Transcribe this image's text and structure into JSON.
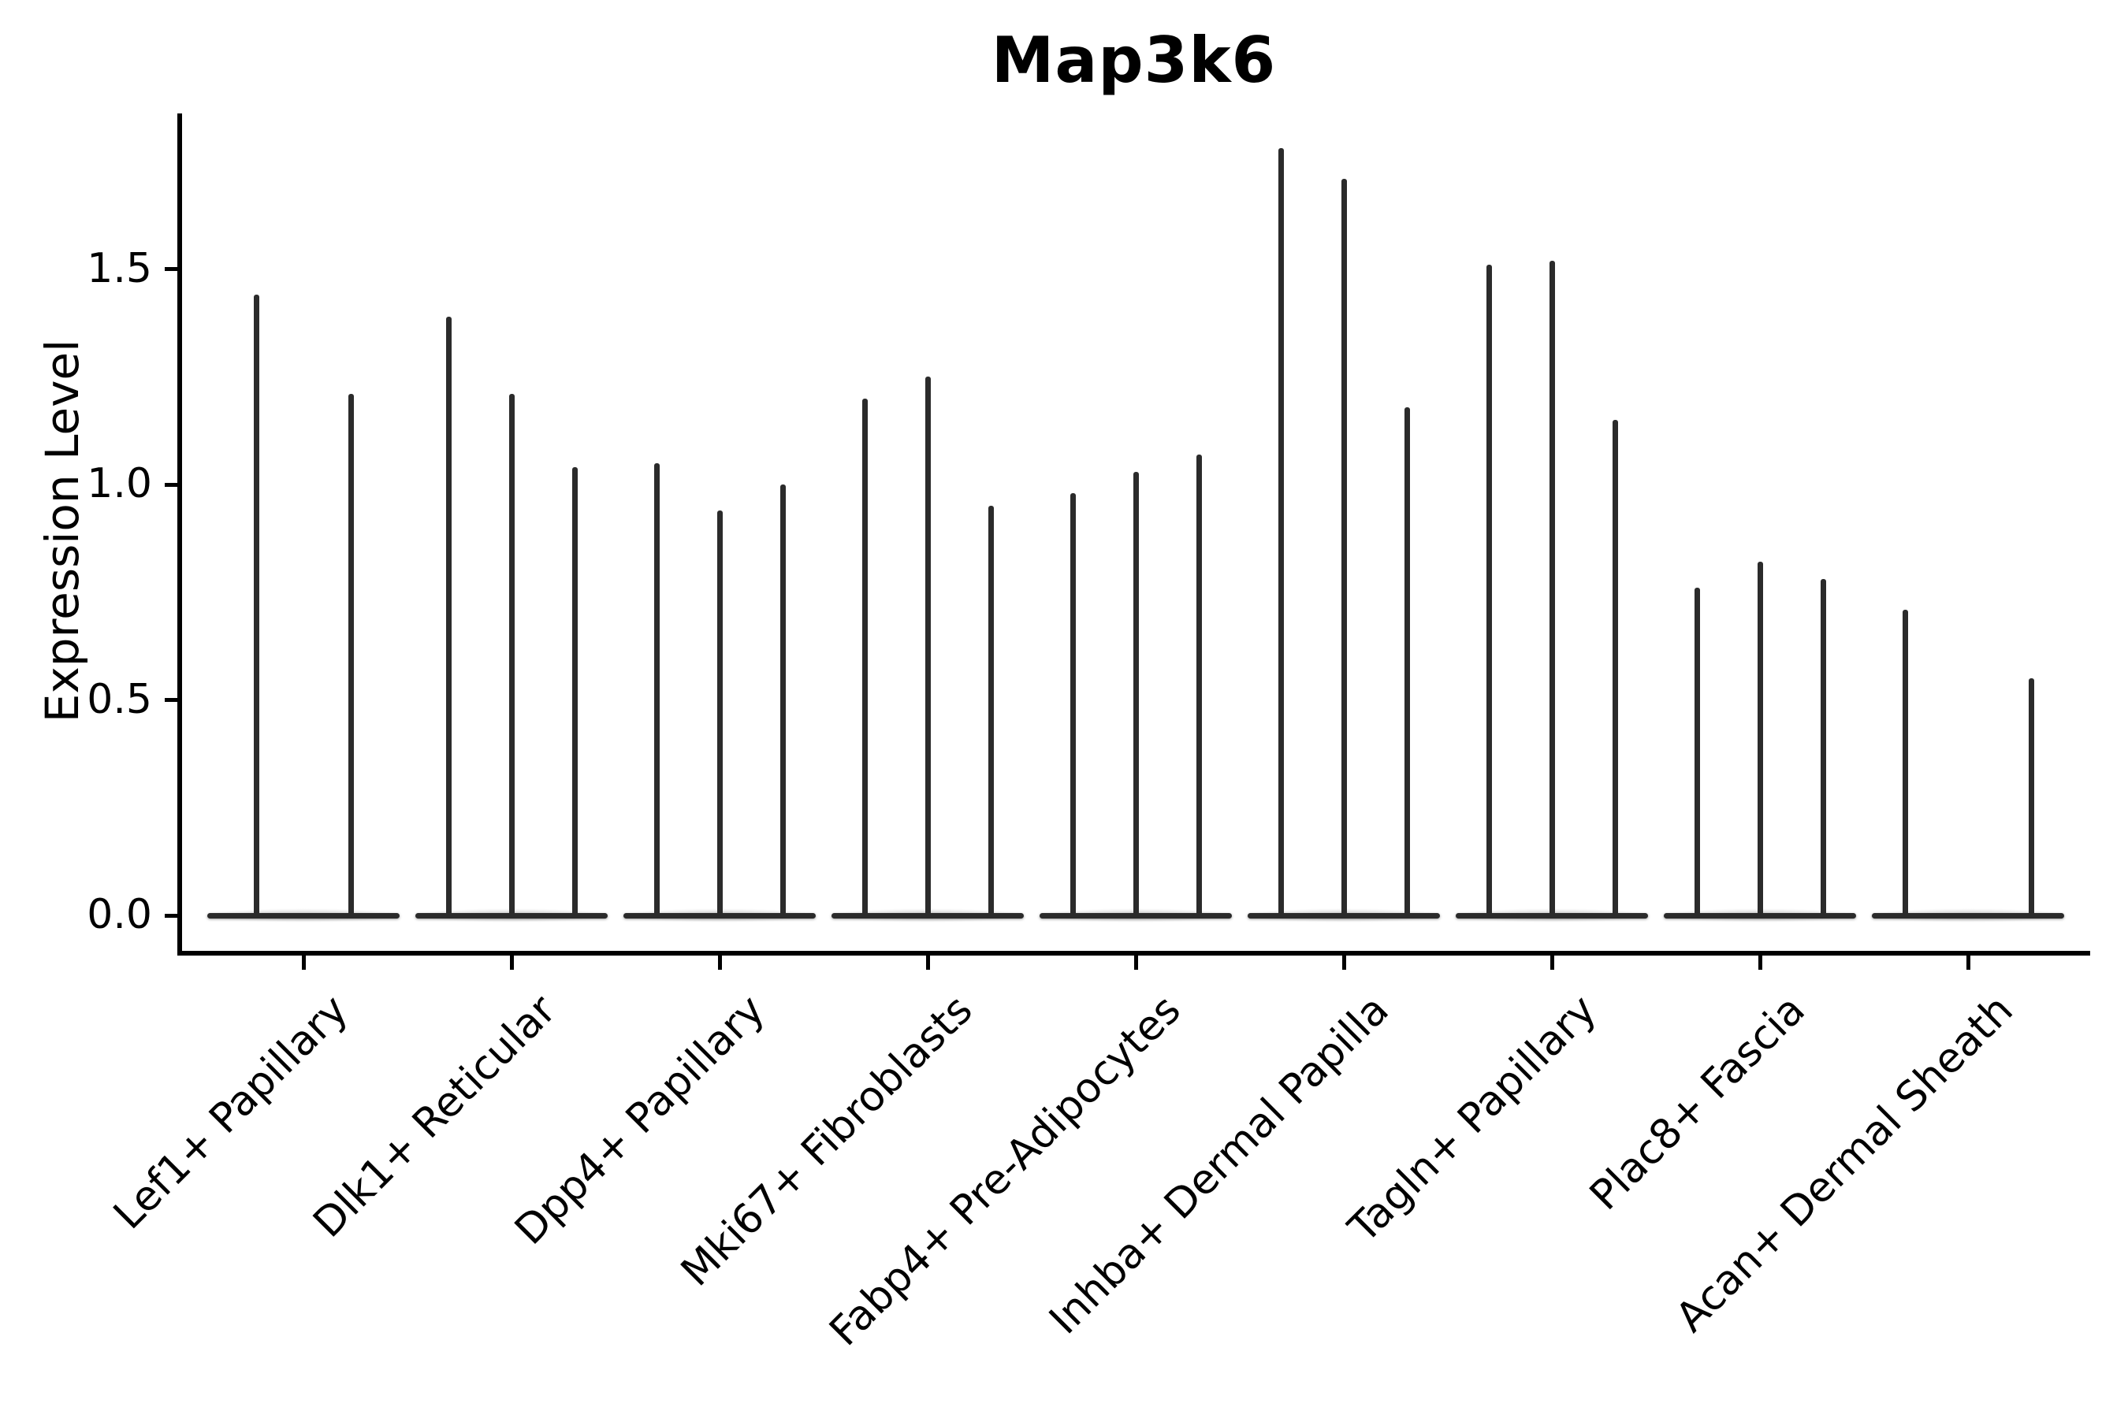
{
  "figure": {
    "title": "Map3k6",
    "y_axis_label": "Expression Level"
  },
  "chart_data": {
    "type": "violin",
    "title": "Map3k6",
    "xlabel": "",
    "ylabel": "Expression Level",
    "y_ticks": [
      "0.0",
      "0.5",
      "1.0",
      "1.5"
    ],
    "ylim": [
      -0.08,
      1.86
    ],
    "grid": false,
    "legend": "none",
    "style": {
      "violin_color": "#2b2b2b",
      "axis_color": "#000000",
      "background": "#ffffff"
    },
    "categories": [
      "Lef1+ Papillary",
      "Dlk1+ Reticular",
      "Dpp4+ Papillary",
      "Mki67+ Fibroblasts",
      "Fabp4+ Pre-Adipocytes",
      "Inhba+ Dermal Papilla",
      "Tagln+ Papillary",
      "Plac8+ Fascia",
      "Acan+ Dermal Sheath"
    ],
    "groups": [
      {
        "label": "Lef1+ Papillary",
        "violin_max_values": [
          1.44,
          1.21
        ]
      },
      {
        "label": "Dlk1+ Reticular",
        "violin_max_values": [
          1.39,
          1.21,
          1.04
        ]
      },
      {
        "label": "Dpp4+ Papillary",
        "violin_max_values": [
          1.05,
          0.94,
          1.0
        ]
      },
      {
        "label": "Mki67+ Fibroblasts",
        "violin_max_values": [
          1.2,
          1.25,
          0.95
        ]
      },
      {
        "label": "Fabp4+ Pre-Adipocytes",
        "violin_max_values": [
          0.98,
          1.03,
          1.07
        ]
      },
      {
        "label": "Inhba+ Dermal Papilla",
        "violin_max_values": [
          1.78,
          1.71,
          1.18
        ]
      },
      {
        "label": "Tagln+ Papillary",
        "violin_max_values": [
          1.51,
          1.52,
          1.15
        ]
      },
      {
        "label": "Plac8+ Fascia",
        "violin_max_values": [
          0.76,
          0.82,
          0.78
        ]
      },
      {
        "label": "Acan+ Dermal Sheath",
        "violin_max_values": [
          0.71,
          0.0,
          0.55
        ]
      }
    ],
    "description": "Violin plot of Map3k6 expression per fibroblast cell-type cluster; each violin is a flat dense mass at 0 with a thin spike rising to its maximum expression value."
  }
}
